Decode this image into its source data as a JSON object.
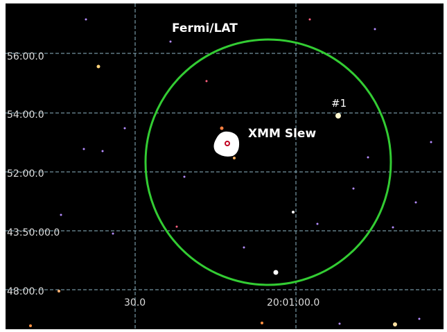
{
  "annotations": {
    "circle_label": "Fermi/LAT",
    "source_label": "XMM Slew",
    "candidate_label": "#1"
  },
  "axes": {
    "dec_labels": [
      "56:00.0",
      "54:00.0",
      "52:00.0",
      "43:50:00.0",
      "48:00.0"
    ],
    "ra_labels": [
      "30.0",
      "20:01:00.0"
    ]
  }
}
